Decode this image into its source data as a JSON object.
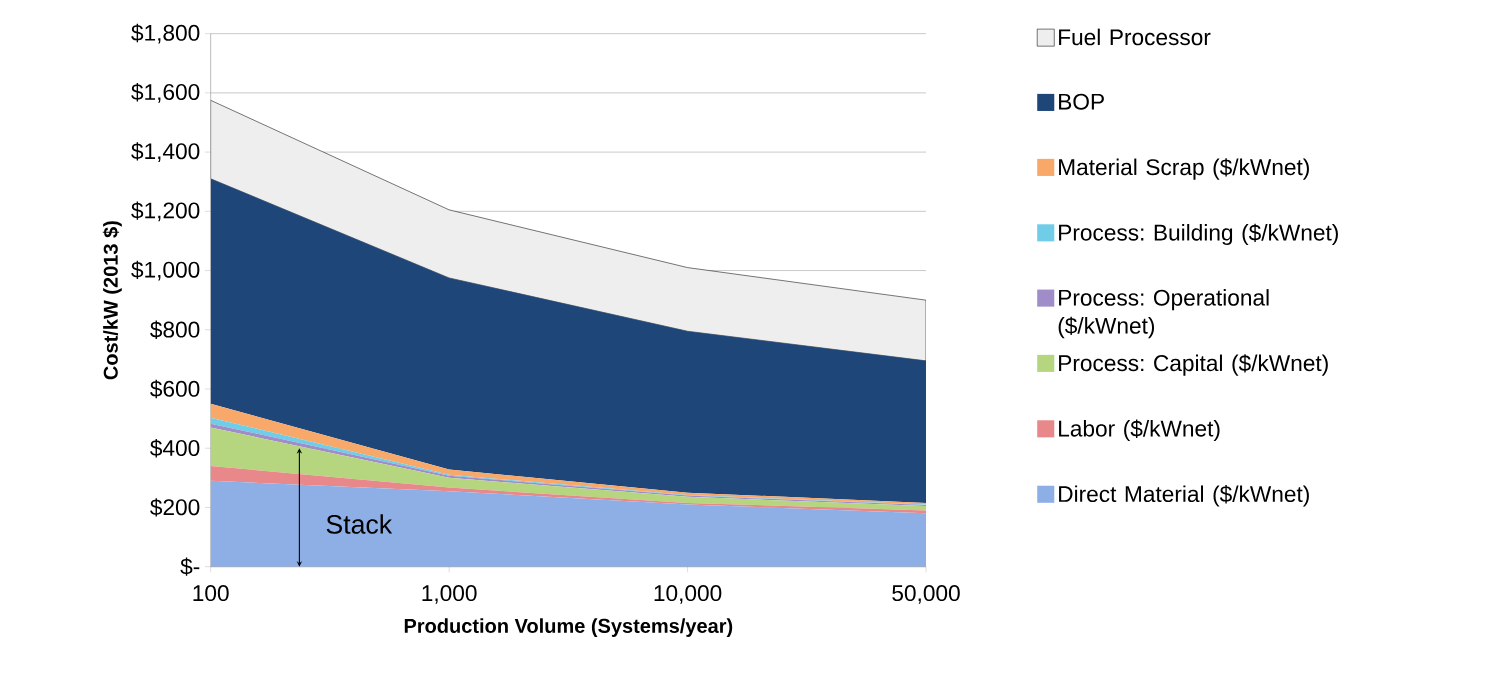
{
  "chart_data": {
    "type": "area",
    "stacked": true,
    "xlabel": "Production Volume (Systems/year)",
    "ylabel": "Cost/kW (2013 $)",
    "categories": [
      "100",
      "1,000",
      "10,000",
      "50,000"
    ],
    "ylim": [
      0,
      1800
    ],
    "yticks": [
      {
        "value": 0,
        "label": "$-"
      },
      {
        "value": 200,
        "label": "$200"
      },
      {
        "value": 400,
        "label": "$400"
      },
      {
        "value": 600,
        "label": "$600"
      },
      {
        "value": 800,
        "label": "$800"
      },
      {
        "value": 1000,
        "label": "$1,000"
      },
      {
        "value": 1200,
        "label": "$1,200"
      },
      {
        "value": 1400,
        "label": "$1,400"
      },
      {
        "value": 1600,
        "label": "$1,600"
      },
      {
        "value": 1800,
        "label": "$1,800"
      }
    ],
    "grid": "y",
    "legend": "right",
    "series": [
      {
        "name": "Direct Material ($/kWnet)",
        "color": "#8eaee6",
        "values": [
          290,
          255,
          210,
          180
        ]
      },
      {
        "name": "Labor ($/kWnet)",
        "color": "#e8888a",
        "values": [
          50,
          12,
          5,
          10
        ]
      },
      {
        "name": "Process: Capital ($/kWnet)",
        "color": "#b5d67e",
        "values": [
          130,
          33,
          21,
          15
        ]
      },
      {
        "name": "Process: Operational ($/kWnet)",
        "color": "#a08cc8",
        "values": [
          13,
          7,
          4,
          3
        ]
      },
      {
        "name": "Process: Building ($/kWnet)",
        "color": "#6fcde8",
        "values": [
          20,
          3,
          2,
          2
        ]
      },
      {
        "name": "Material Scrap ($/kWnet)",
        "color": "#f8a868",
        "values": [
          47,
          18,
          8,
          5
        ]
      },
      {
        "name": "BOP",
        "color": "#1f4679",
        "values": [
          760,
          647,
          545,
          480
        ]
      },
      {
        "name": "Fuel Processor",
        "color": "#eeeeee",
        "values": [
          265,
          230,
          215,
          205
        ]
      }
    ],
    "annotations": [
      "Stack"
    ]
  }
}
